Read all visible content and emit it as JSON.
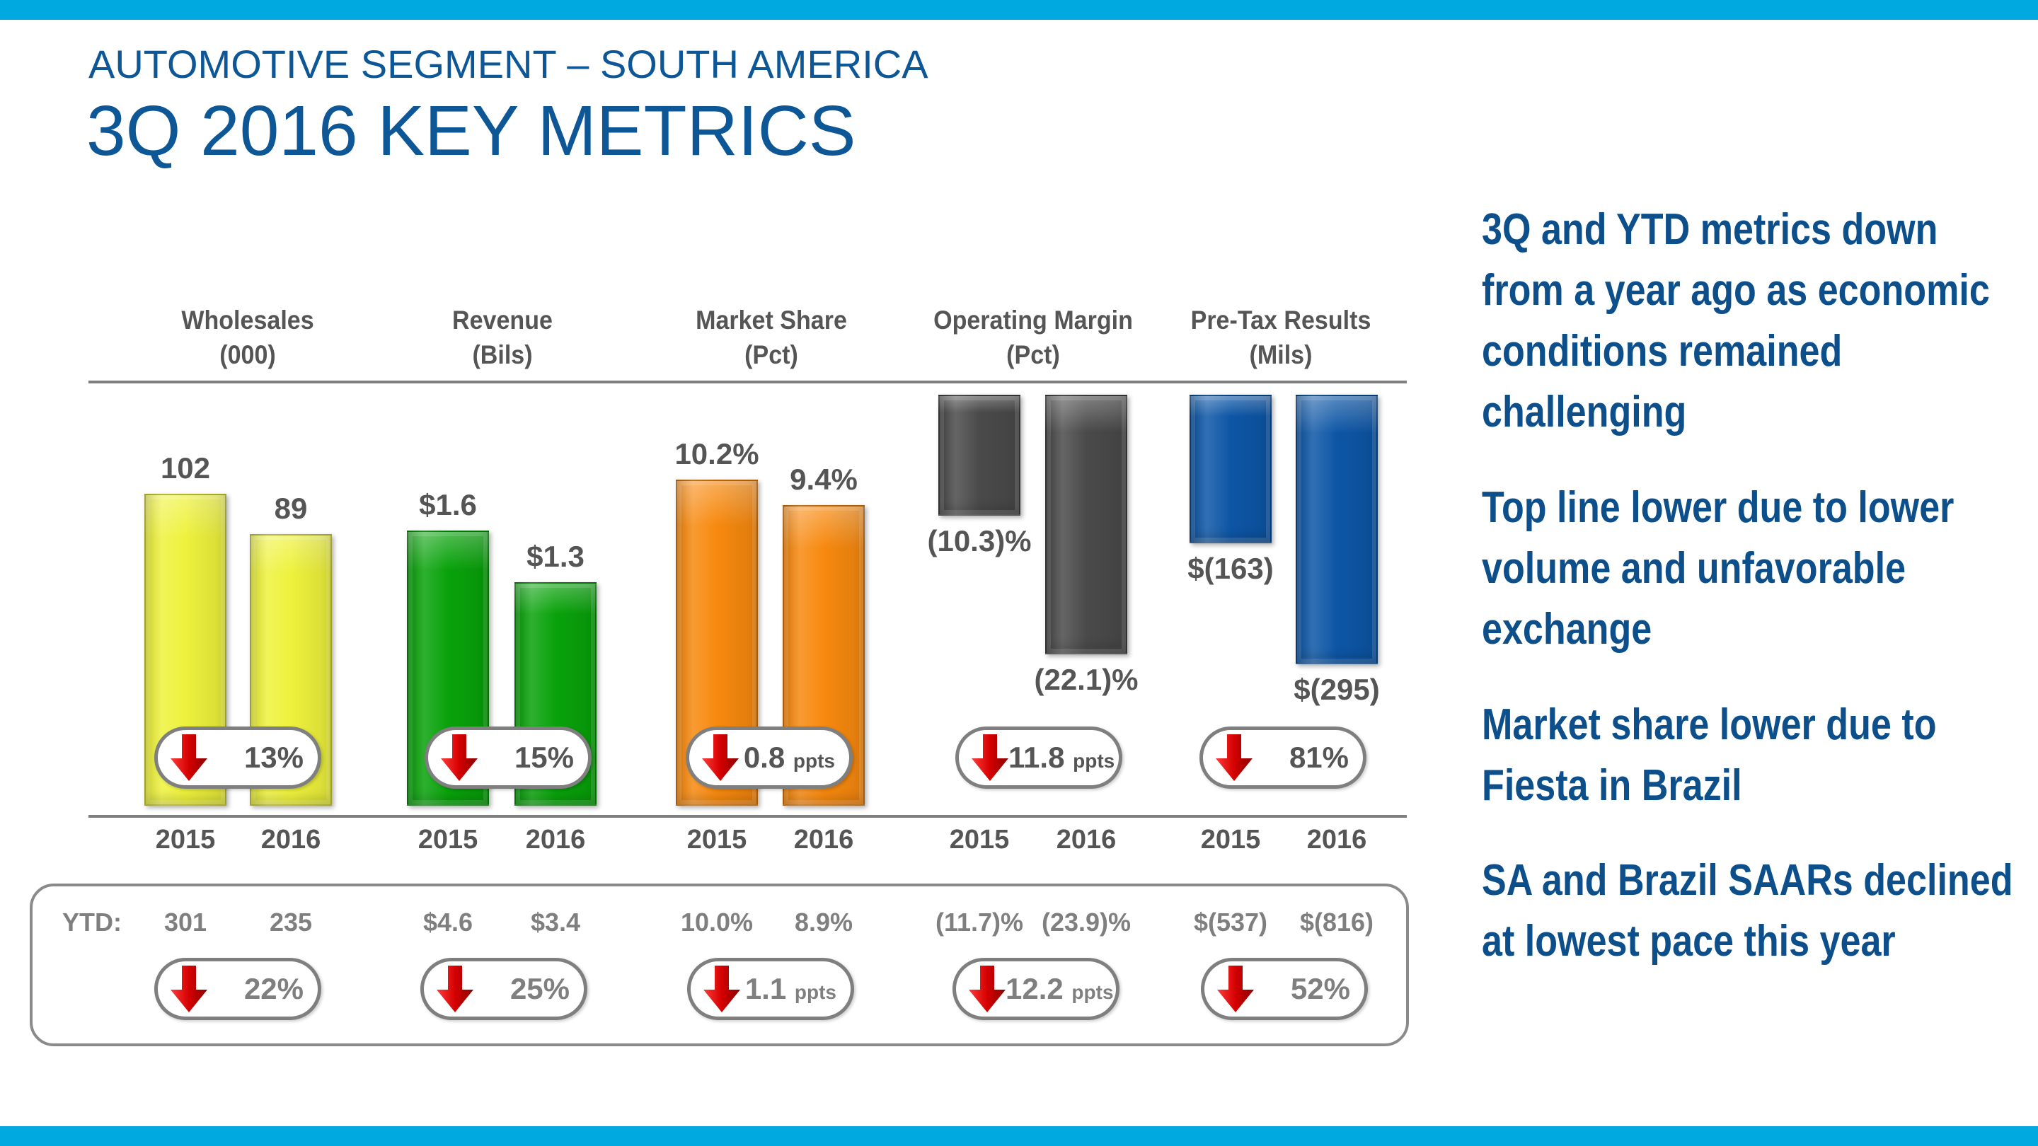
{
  "header": {
    "subtitle": "AUTOMOTIVE SEGMENT – SOUTH AMERICA",
    "title": "3Q 2016 KEY METRICS"
  },
  "colors": {
    "brand": "#0d5796",
    "accent_bar": "#00a9e0",
    "down_arrow": "#cc0000"
  },
  "chart_data": {
    "type": "bar",
    "categories": [
      "2015",
      "2016"
    ],
    "ytd_label": "YTD:",
    "metrics": [
      {
        "name": "Wholesales",
        "unit": "(000)",
        "color": "#eef23c",
        "values": [
          102,
          89
        ],
        "labels": [
          "102",
          "89"
        ],
        "change": {
          "direction": "down",
          "value": "13%",
          "unit": ""
        },
        "ytd": {
          "values": [
            301,
            235
          ],
          "labels": [
            "301",
            "235"
          ],
          "change": {
            "direction": "down",
            "value": "22%",
            "unit": ""
          }
        }
      },
      {
        "name": "Revenue",
        "unit": "(Bils)",
        "color": "#09a20b",
        "values": [
          1.6,
          1.3
        ],
        "labels": [
          "$1.6",
          "$1.3"
        ],
        "change": {
          "direction": "down",
          "value": "15%",
          "unit": ""
        },
        "ytd": {
          "values": [
            4.6,
            3.4
          ],
          "labels": [
            "$4.6",
            "$3.4"
          ],
          "change": {
            "direction": "down",
            "value": "25%",
            "unit": ""
          }
        }
      },
      {
        "name": "Market Share",
        "unit": "(Pct)",
        "color": "#f7890f",
        "values": [
          10.2,
          9.4
        ],
        "labels": [
          "10.2%",
          "9.4%"
        ],
        "change": {
          "direction": "down",
          "value": "0.8",
          "unit": "ppts"
        },
        "ytd": {
          "values": [
            10.0,
            8.9
          ],
          "labels": [
            "10.0%",
            "8.9%"
          ],
          "change": {
            "direction": "down",
            "value": "1.1",
            "unit": "ppts"
          }
        }
      },
      {
        "name": "Operating Margin",
        "unit": "(Pct)",
        "color": "#4a4a4a",
        "values": [
          -10.3,
          -22.1
        ],
        "labels": [
          "(10.3)%",
          "(22.1)%"
        ],
        "change": {
          "direction": "down",
          "value": "11.8",
          "unit": "ppts"
        },
        "ytd": {
          "values": [
            -11.7,
            -23.9
          ],
          "labels": [
            "(11.7)%",
            "(23.9)%"
          ],
          "change": {
            "direction": "down",
            "value": "12.2",
            "unit": "ppts"
          }
        }
      },
      {
        "name": "Pre-Tax Results",
        "unit": "(Mils)",
        "color": "#0d56a6",
        "values": [
          -163,
          -295
        ],
        "labels": [
          "$(163)",
          "$(295)"
        ],
        "change": {
          "direction": "down",
          "value": "81%",
          "unit": ""
        },
        "ytd": {
          "values": [
            -537,
            -816
          ],
          "labels": [
            "$(537)",
            "$(816)"
          ],
          "change": {
            "direction": "down",
            "value": "52%",
            "unit": ""
          }
        }
      }
    ]
  },
  "sidebar": {
    "points": [
      "3Q and YTD metrics down from a year ago as economic conditions remained challenging",
      "Top line lower due to lower volume and unfavorable exchange",
      "Market share lower due to Fiesta in Brazil",
      "SA and Brazil SAARs declined at lowest pace this year"
    ]
  }
}
